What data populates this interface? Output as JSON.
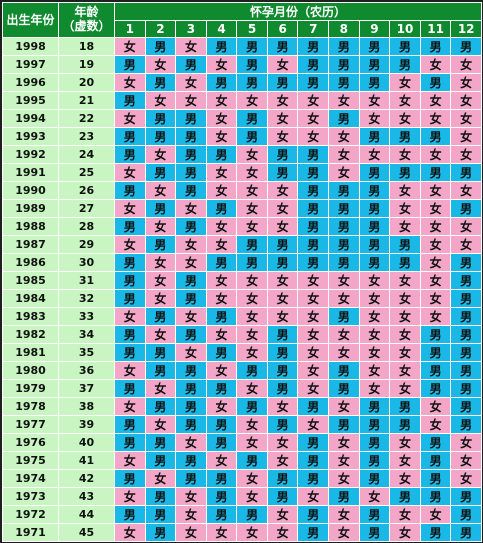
{
  "header": {
    "birth_year": "出生年份",
    "age_line1": "年龄",
    "age_line2": "（虚数）",
    "month_title": "怀孕月份（农历）",
    "months": [
      "1",
      "2",
      "3",
      "4",
      "5",
      "6",
      "7",
      "8",
      "9",
      "10",
      "11",
      "12"
    ]
  },
  "colors": {
    "male": "#1ab8e6",
    "female": "#f4a6c8",
    "header": "#0f8a2e",
    "label": "#c8f5c2"
  },
  "labels": {
    "male": "男",
    "female": "女"
  },
  "rows": [
    {
      "year": "1998",
      "age": "18",
      "cells": "FMFMMMMMMMMM"
    },
    {
      "year": "1997",
      "age": "19",
      "cells": "MFMFMFMMMMFF"
    },
    {
      "year": "1996",
      "age": "20",
      "cells": "FMFMMMMMMFMF"
    },
    {
      "year": "1995",
      "age": "21",
      "cells": "MFFFFFFFFFFF"
    },
    {
      "year": "1994",
      "age": "22",
      "cells": "FMMFMFFMFFFF"
    },
    {
      "year": "1993",
      "age": "23",
      "cells": "MMMFMFFFMMMF"
    },
    {
      "year": "1992",
      "age": "24",
      "cells": "MFMMFMMFFFFF"
    },
    {
      "year": "1991",
      "age": "25",
      "cells": "FMMFFMMFMMMM"
    },
    {
      "year": "1990",
      "age": "26",
      "cells": "MFMFFFMMMFFF"
    },
    {
      "year": "1989",
      "age": "27",
      "cells": "FMFMFFMMMFFM"
    },
    {
      "year": "1988",
      "age": "28",
      "cells": "MFMFFFMMMFFF"
    },
    {
      "year": "1987",
      "age": "29",
      "cells": "FMFFMMMMMMFF"
    },
    {
      "year": "1986",
      "age": "30",
      "cells": "MFFMMMMMMMFM"
    },
    {
      "year": "1985",
      "age": "31",
      "cells": "MFMFFFFFFFFM"
    },
    {
      "year": "1984",
      "age": "32",
      "cells": "MFMFFFFFFFFM"
    },
    {
      "year": "1983",
      "age": "33",
      "cells": "FMFMFFFMFFFM"
    },
    {
      "year": "1982",
      "age": "34",
      "cells": "MFMFFMFFFFMM"
    },
    {
      "year": "1981",
      "age": "35",
      "cells": "MMFMFMFFFFMM"
    },
    {
      "year": "1980",
      "age": "36",
      "cells": "FMMFMMFMFFMM"
    },
    {
      "year": "1979",
      "age": "37",
      "cells": "MFMMFMFMFFMM"
    },
    {
      "year": "1978",
      "age": "38",
      "cells": "FMMFMFMFMMFM"
    },
    {
      "year": "1977",
      "age": "39",
      "cells": "MFMMFMFMMMFM"
    },
    {
      "year": "1976",
      "age": "40",
      "cells": "MMFMFFMFMFMF"
    },
    {
      "year": "1975",
      "age": "41",
      "cells": "FMMFMFMFMFMF"
    },
    {
      "year": "1974",
      "age": "42",
      "cells": "MFMMFMMFMFMF"
    },
    {
      "year": "1973",
      "age": "43",
      "cells": "FMFMFMFMFMMM"
    },
    {
      "year": "1972",
      "age": "44",
      "cells": "MMFMMFMFMFFM"
    },
    {
      "year": "1971",
      "age": "45",
      "cells": "FMFFFFMFMFMM"
    }
  ]
}
